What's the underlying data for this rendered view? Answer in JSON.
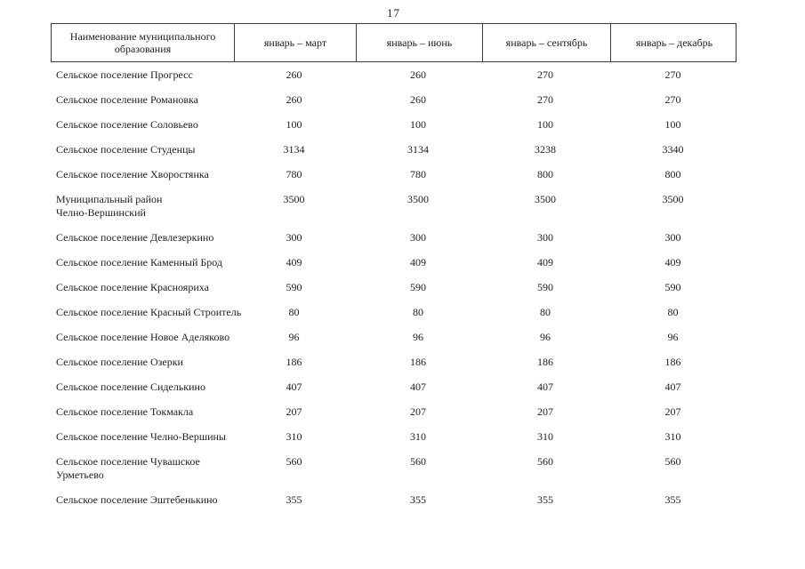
{
  "page": {
    "number": "17"
  },
  "table": {
    "header": {
      "name_col": "Наименование муниципального\nобразования",
      "period_cols": [
        "январь – март",
        "январь – июнь",
        "январь – сентябрь",
        "январь – декабрь"
      ]
    },
    "rows": [
      {
        "name": "Сельское поселение Прогресс",
        "values": [
          "260",
          "260",
          "270",
          "270"
        ]
      },
      {
        "name": "Сельское поселение Романовка",
        "values": [
          "260",
          "260",
          "270",
          "270"
        ]
      },
      {
        "name": "Сельское поселение Соловьево",
        "values": [
          "100",
          "100",
          "100",
          "100"
        ]
      },
      {
        "name": "Сельское поселение Студенцы",
        "values": [
          "3134",
          "3134",
          "3238",
          "3340"
        ]
      },
      {
        "name": "Сельское поселение Хворостянка",
        "values": [
          "780",
          "780",
          "800",
          "800"
        ]
      },
      {
        "name": "Муниципальный район\nЧелно-Вершинский",
        "values": [
          "3500",
          "3500",
          "3500",
          "3500"
        ]
      },
      {
        "name": "Сельское поселение Девлезеркино",
        "values": [
          "300",
          "300",
          "300",
          "300"
        ]
      },
      {
        "name": "Сельское поселение Каменный Брод",
        "values": [
          "409",
          "409",
          "409",
          "409"
        ]
      },
      {
        "name": "Сельское поселение Краснояриха",
        "values": [
          "590",
          "590",
          "590",
          "590"
        ]
      },
      {
        "name": "Сельское поселение Красный Строитель",
        "values": [
          "80",
          "80",
          "80",
          "80"
        ]
      },
      {
        "name": "Сельское поселение Новое Аделяково",
        "values": [
          "96",
          "96",
          "96",
          "96"
        ]
      },
      {
        "name": "Сельское поселение Озерки",
        "values": [
          "186",
          "186",
          "186",
          "186"
        ]
      },
      {
        "name": "Сельское поселение Сиделькино",
        "values": [
          "407",
          "407",
          "407",
          "407"
        ]
      },
      {
        "name": "Сельское поселение Токмакла",
        "values": [
          "207",
          "207",
          "207",
          "207"
        ]
      },
      {
        "name": "Сельское поселение Челно-Вершины",
        "values": [
          "310",
          "310",
          "310",
          "310"
        ]
      },
      {
        "name": "Сельское поселение Чувашское\nУрметьево",
        "values": [
          "560",
          "560",
          "560",
          "560"
        ]
      },
      {
        "name": "Сельское поселение Эштебенькино",
        "values": [
          "355",
          "355",
          "355",
          "355"
        ]
      }
    ]
  }
}
